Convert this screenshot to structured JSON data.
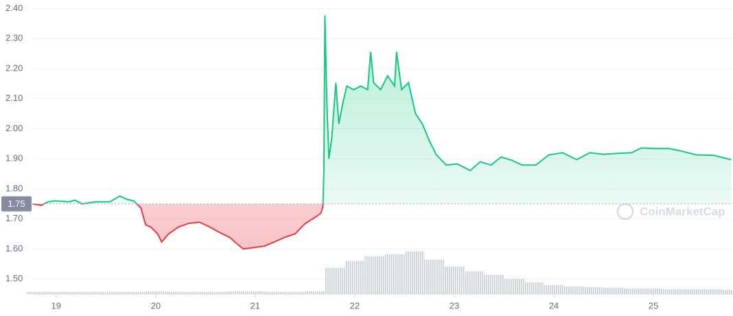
{
  "chart_data": {
    "type": "line",
    "watermark": "CoinMarketCap",
    "reference_value": 1.75,
    "xlim": [
      18.76,
      25.8
    ],
    "xticks": [
      19,
      20,
      21,
      22,
      23,
      24,
      25
    ],
    "ylim": [
      1.45,
      2.41
    ],
    "yticks": [
      {
        "value": 1.5,
        "label": "1.50"
      },
      {
        "value": 1.6,
        "label": "1.60"
      },
      {
        "value": 1.7,
        "label": "1.70"
      },
      {
        "value": 1.8,
        "label": "1.80"
      },
      {
        "value": 1.9,
        "label": "1.90"
      },
      {
        "value": 2.0,
        "label": "2.00"
      },
      {
        "value": 2.1,
        "label": "2.10"
      },
      {
        "value": 2.2,
        "label": "2.20"
      },
      {
        "value": 2.3,
        "label": "2.30"
      },
      {
        "value": 2.4,
        "label": "2.40"
      }
    ],
    "y2lim": [
      0,
      100
    ],
    "grid": true,
    "up_color": "#16c784",
    "down_color": "#ea3943",
    "series": [
      {
        "color": "#16c784",
        "x": [
          18.76,
          18.85,
          18.92,
          18.99,
          19.13,
          19.19,
          19.26,
          19.4,
          19.54,
          19.64,
          19.71,
          19.78,
          19.85,
          19.9,
          19.95,
          20.02,
          20.06,
          20.13,
          20.23,
          20.33,
          20.44,
          20.54,
          20.64,
          20.75,
          20.82,
          20.88,
          20.99,
          21.09,
          21.19,
          21.3,
          21.4,
          21.5,
          21.61,
          21.66,
          21.68,
          21.69,
          21.7,
          21.72,
          21.74,
          21.77,
          21.81,
          21.84,
          21.88,
          21.92,
          21.99,
          22.06,
          22.13,
          22.16,
          22.19,
          22.26,
          22.33,
          22.4,
          22.42,
          22.47,
          22.54,
          22.61,
          22.68,
          22.75,
          22.82,
          22.92,
          23.03,
          23.16,
          23.26,
          23.37,
          23.47,
          23.58,
          23.68,
          23.82,
          23.95,
          24.09,
          24.23,
          24.36,
          24.5,
          24.64,
          24.78,
          24.88,
          25.02,
          25.16,
          25.29,
          25.43,
          25.61,
          25.78
        ],
        "values": [
          1.75,
          1.745,
          1.757,
          1.76,
          1.757,
          1.762,
          1.75,
          1.757,
          1.757,
          1.776,
          1.765,
          1.76,
          1.737,
          1.68,
          1.673,
          1.65,
          1.623,
          1.65,
          1.673,
          1.685,
          1.689,
          1.673,
          1.655,
          1.637,
          1.616,
          1.6,
          1.605,
          1.609,
          1.623,
          1.639,
          1.65,
          1.684,
          1.707,
          1.719,
          1.741,
          1.856,
          2.377,
          2.085,
          1.9,
          1.97,
          2.153,
          2.016,
          2.085,
          2.142,
          2.13,
          2.142,
          2.13,
          2.256,
          2.153,
          2.13,
          2.176,
          2.142,
          2.256,
          2.13,
          2.153,
          2.05,
          2.016,
          1.959,
          1.913,
          1.879,
          1.883,
          1.861,
          1.89,
          1.879,
          1.906,
          1.895,
          1.879,
          1.879,
          1.913,
          1.92,
          1.897,
          1.92,
          1.915,
          1.918,
          1.92,
          1.936,
          1.934,
          1.934,
          1.925,
          1.913,
          1.911,
          1.897
        ]
      },
      {
        "type": "bar",
        "axis": "y2",
        "color": "#c5cad6",
        "x": [
          18.8,
          19.0,
          19.2,
          19.4,
          19.6,
          19.8,
          20.0,
          20.2,
          20.4,
          20.6,
          20.8,
          21.0,
          21.2,
          21.4,
          21.6,
          21.8,
          22.0,
          22.2,
          22.4,
          22.6,
          22.8,
          23.0,
          23.2,
          23.4,
          23.6,
          23.8,
          24.0,
          24.2,
          24.4,
          24.6,
          24.8,
          25.0,
          25.2,
          25.4,
          25.6,
          25.8
        ],
        "values": [
          3,
          3,
          3,
          3,
          3,
          3,
          4,
          3,
          3,
          3,
          4,
          4,
          3,
          3,
          4,
          38,
          48,
          55,
          58,
          62,
          50,
          40,
          33,
          28,
          22,
          17,
          13,
          11,
          10,
          9,
          8,
          8,
          7,
          7,
          7,
          6
        ]
      }
    ]
  }
}
